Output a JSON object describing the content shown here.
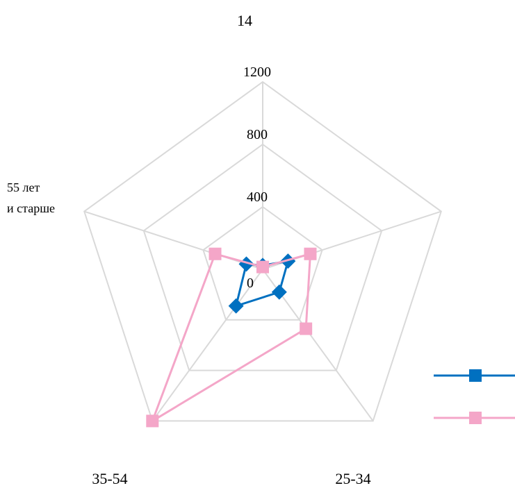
{
  "chart_data": {
    "type": "radar",
    "axes": [
      "14",
      "",
      "25-34",
      "35-54",
      "55 лет и старше"
    ],
    "rticks": [
      0,
      400,
      800,
      1200
    ],
    "rlim": [
      0,
      1200
    ],
    "series": [
      {
        "values": [
          25,
          170,
          180,
          290,
          110
        ],
        "color": "#0070c0",
        "marker": "diamond"
      },
      {
        "values": [
          15,
          320,
          470,
          1200,
          320
        ],
        "color": "#f4a6c8",
        "marker": "square"
      }
    ],
    "legend": "right",
    "grid": true
  }
}
